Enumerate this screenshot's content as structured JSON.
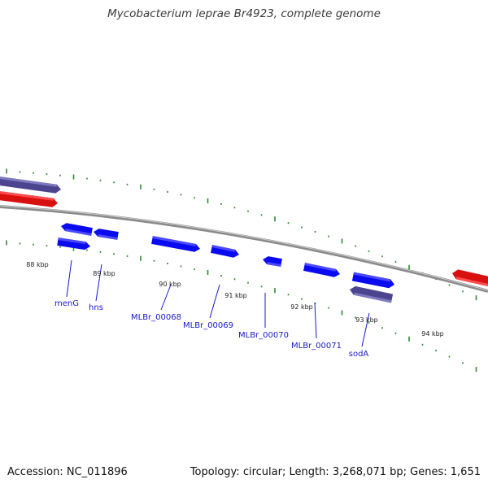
{
  "title": "Mycobacterium leprae Br4923, complete genome",
  "footer": {
    "accession_label": "Accession:",
    "accession": "NC_011896",
    "topology_label": "Topology:",
    "topology": "circular",
    "length_label": "Length:",
    "length": "3,268,071 bp",
    "genes_label": "Genes:",
    "genes": "1,651"
  },
  "colors": {
    "backbone": "#8a8a8a",
    "tick": "#2e8b2e",
    "cds_forward": "#0a0af0",
    "cds_forward_light": "#4a4aff",
    "gene_highlight": "#d81010",
    "gene_highlight_light": "#ff4c4c",
    "gene_slate": "#4b4590",
    "gene_slate_light": "#7f7ac0",
    "label": "#1a1acc"
  },
  "scale": {
    "labels": [
      "88 kbp",
      "89 kbp",
      "90 kbp",
      "91 kbp",
      "92 kbp",
      "93 kbp",
      "94 kbp"
    ]
  },
  "genes": [
    {
      "name": "menG"
    },
    {
      "name": "hns"
    },
    {
      "name": "MLBr_00068"
    },
    {
      "name": "MLBr_00069"
    },
    {
      "name": "MLBr_00070"
    },
    {
      "name": "MLBr_00071"
    },
    {
      "name": "sodA"
    }
  ]
}
